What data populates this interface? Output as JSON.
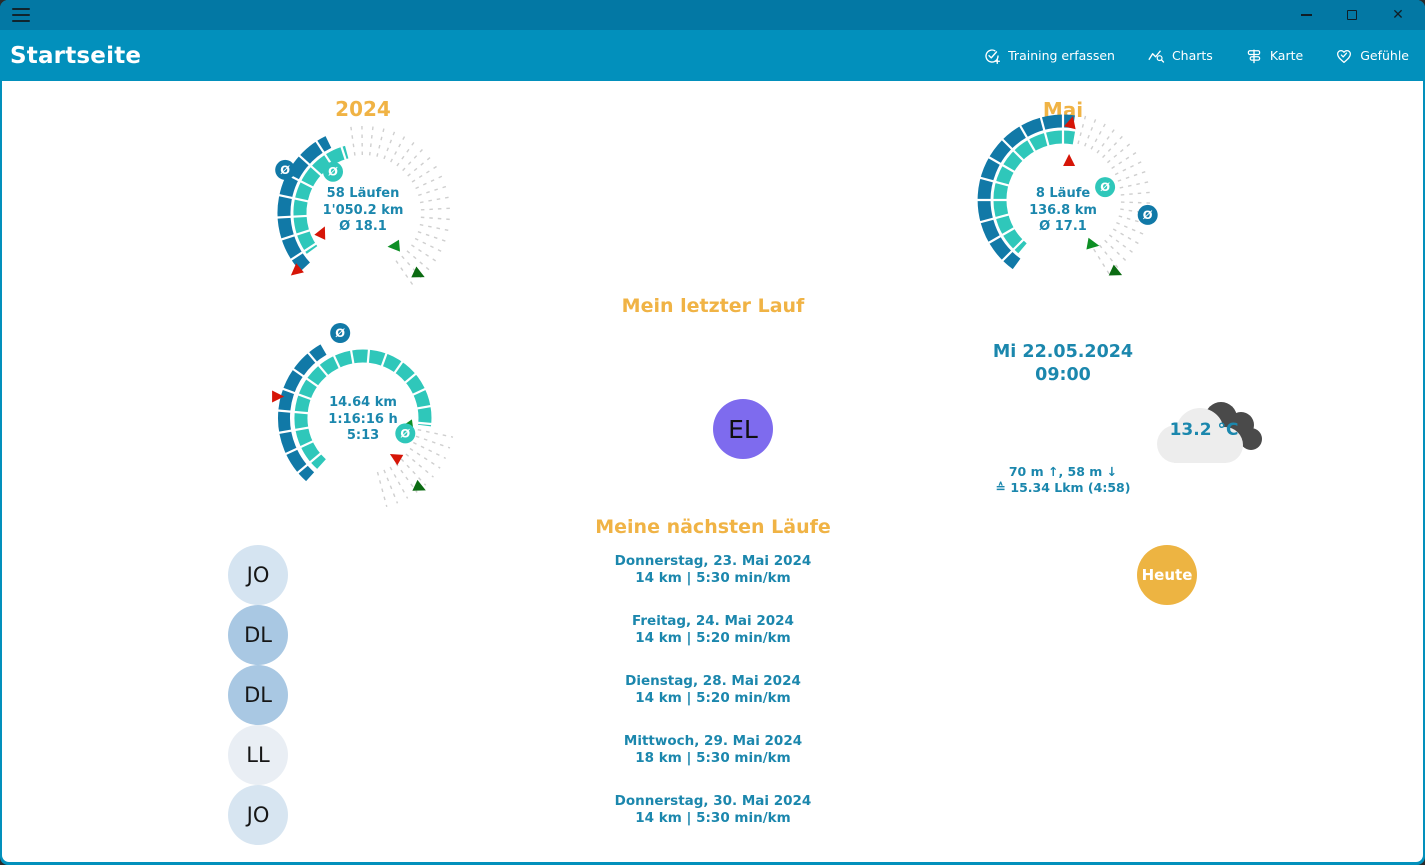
{
  "window": {
    "app_title": "Startseite"
  },
  "nav": {
    "items": [
      {
        "label": "Training erfassen",
        "icon": "check-circle-plus-icon"
      },
      {
        "label": "Charts",
        "icon": "chart-search-icon"
      },
      {
        "label": "Karte",
        "icon": "route-sign-icon"
      },
      {
        "label": "Gefühle",
        "icon": "heart-check-icon"
      }
    ]
  },
  "chart_data": [
    {
      "type": "gauge",
      "name": "year-summary",
      "title": "2024",
      "runs": 58,
      "distance_km": 1050.2,
      "avg_km": 18.1,
      "center_lines": [
        "58 Läufen",
        "1'050.2 km",
        "Ø 18.1"
      ],
      "arcs": [
        {
          "color": "#1179a7",
          "r": 79,
          "w": 13,
          "from": -26,
          "to": -133
        },
        {
          "color": "#2fc7ba",
          "r": 63,
          "w": 13,
          "from": -15,
          "to": -126
        }
      ],
      "ticks": {
        "from": -8,
        "to": 152,
        "step": 7.3,
        "r1": 58,
        "r2": 90
      },
      "cross": {
        "from": -123,
        "to": -18,
        "step": 15,
        "r1": 54,
        "r2": 88
      },
      "badges": [
        {
          "deg": -61,
          "r": 89,
          "color": "#1179a7"
        },
        {
          "deg": -36,
          "r": 51,
          "color": "#2fc7ba"
        }
      ],
      "markers": [
        {
          "deg": -116,
          "r": 46,
          "color": "#d61507",
          "rot": 25
        },
        {
          "deg": -131,
          "r": 88,
          "color": "#d61507",
          "rot": 230
        },
        {
          "deg": 136,
          "r": 46,
          "color": "#0e8f25",
          "rot": 265
        },
        {
          "deg": 138,
          "r": 82,
          "color": "#0b6b12",
          "rot": 115
        }
      ]
    },
    {
      "type": "gauge",
      "name": "month-summary",
      "title": "Mai",
      "runs": 8,
      "distance_km": 136.8,
      "avg_km": 17.1,
      "center_lines": [
        "8 Läufe",
        "136.8 km",
        "Ø 17.1"
      ],
      "arcs": [
        {
          "color": "#1179a7",
          "r": 79,
          "w": 13,
          "from": 8,
          "to": -144
        },
        {
          "color": "#2fc7ba",
          "r": 63,
          "w": 13,
          "from": 10,
          "to": -140
        }
      ],
      "ticks": {
        "from": 15,
        "to": 152,
        "step": 7,
        "r1": 58,
        "r2": 90
      },
      "cross": {
        "from": -135,
        "to": 5,
        "step": 15,
        "r1": 54,
        "r2": 88
      },
      "badges": [
        {
          "deg": 73,
          "r": 44,
          "color": "#2fc7ba"
        },
        {
          "deg": 100,
          "r": 86,
          "color": "#1179a7"
        }
      ],
      "markers": [
        {
          "deg": 6,
          "r": 77,
          "color": "#d61507",
          "rot": 15
        },
        {
          "deg": 9,
          "r": 39,
          "color": "#d61507",
          "rot": 0
        },
        {
          "deg": 147,
          "r": 53,
          "color": "#0e8f25",
          "rot": 100
        },
        {
          "deg": 144,
          "r": 89,
          "color": "#0b6b12",
          "rot": 115
        }
      ]
    },
    {
      "type": "gauge",
      "name": "last-run",
      "title": "",
      "distance_km": 14.64,
      "duration": "1:16:16 h",
      "pace": "5:13",
      "center_lines": [
        "14.64 km",
        "1:16:16 h",
        "5:13"
      ],
      "arcs": [
        {
          "color": "#2fc7ba",
          "r": 62,
          "w": 13,
          "from": 97,
          "to": -138
        },
        {
          "color": "#1179a7",
          "r": 79,
          "w": 12,
          "from": -30,
          "to": -138
        }
      ],
      "ticks": {
        "from": 102,
        "to": 168,
        "step": 7,
        "r1": 56,
        "r2": 92
      },
      "cross": {
        "from": -130,
        "to": 95,
        "step": 15,
        "r1": 50,
        "r2": 90
      },
      "badges": [
        {
          "deg": -15,
          "r": 88,
          "color": "#1179a7"
        },
        {
          "deg": 110,
          "r": 45,
          "color": "#2fc7ba"
        }
      ],
      "markers": [
        {
          "deg": -76,
          "r": 89,
          "color": "#d61507",
          "rot": 90
        },
        {
          "deg": 100,
          "r": 46,
          "color": "#0e8f25",
          "rot": 262
        },
        {
          "deg": 140,
          "r": 52,
          "color": "#d61507",
          "rot": 300
        },
        {
          "deg": 141,
          "r": 89,
          "color": "#0b6b12",
          "rot": 115
        }
      ]
    }
  ],
  "last_run": {
    "heading": "Mein letzter Lauf",
    "type_badge": "EL",
    "type_badge_color": "#7e6bee",
    "date": "Mi 22.05.2024",
    "time": "09:00",
    "temperature": "13.2 °C",
    "elevation": "70 m ↑, 58 m ↓",
    "equivalent": "≙ 15.34 Lkm (4:58)"
  },
  "next_runs": {
    "heading": "Meine nächsten Läufe",
    "items": [
      {
        "date": "Donnerstag, 23. Mai 2024",
        "details": "14 km | 5:30 min/km"
      },
      {
        "date": "Freitag, 24. Mai 2024",
        "details": "14 km | 5:20 min/km"
      },
      {
        "date": "Dienstag, 28. Mai 2024",
        "details": "14 km | 5:20 min/km"
      },
      {
        "date": "Mittwoch, 29. Mai 2024",
        "details": "18 km | 5:30 min/km"
      },
      {
        "date": "Donnerstag, 30. Mai 2024",
        "details": "14 km | 5:30 min/km"
      }
    ]
  },
  "run_type_badges": [
    {
      "label": "JO",
      "color": "#d5e4f1"
    },
    {
      "label": "DL",
      "color": "#a9c8e3"
    },
    {
      "label": "DL",
      "color": "#a9c8e3"
    },
    {
      "label": "LL",
      "color": "#e9eef4"
    },
    {
      "label": "JO",
      "color": "#d7e5f1"
    }
  ],
  "today_button": {
    "label": "Heute",
    "color": "#edb442"
  },
  "colors": {
    "titlebar": "#0378a4",
    "header": "#0290bc",
    "teal_text": "#1b87ad",
    "heading_orange": "#f0b345",
    "arc_blue": "#1179a7",
    "arc_teal": "#2fc7ba",
    "marker_red": "#d61507",
    "marker_green": "#0e8f25",
    "marker_dark_green": "#0b6b12",
    "tick_gray": "#cfcfcf"
  }
}
